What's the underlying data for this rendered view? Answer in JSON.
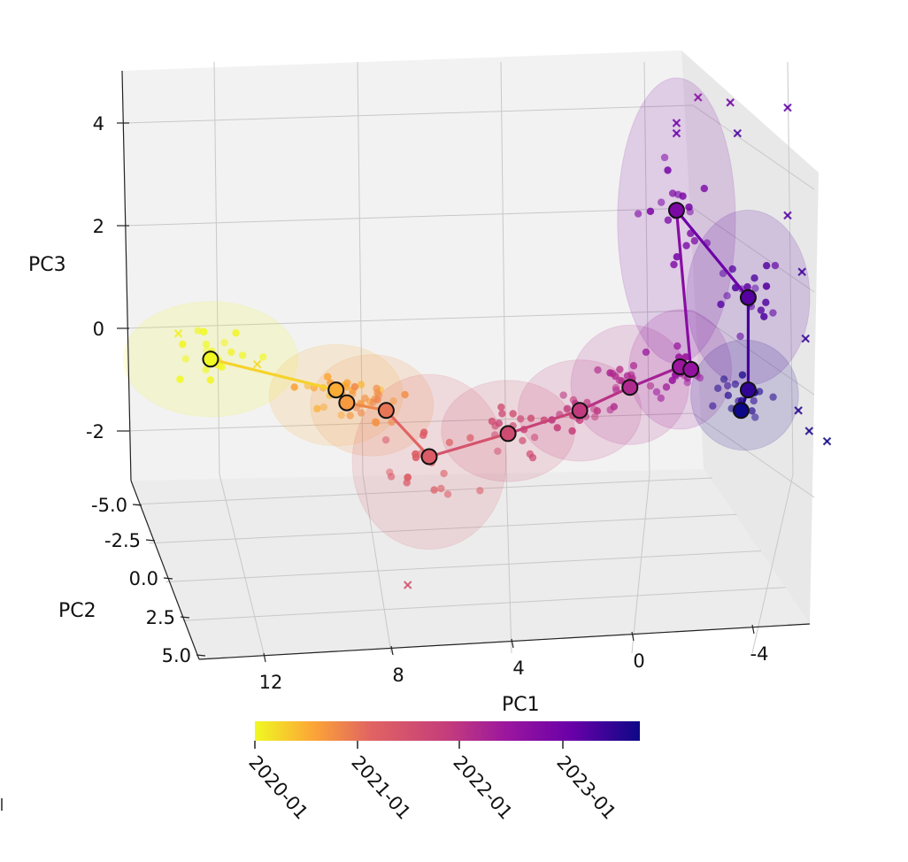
{
  "chart_data": {
    "type": "scatter",
    "projection": "3d",
    "axes": {
      "x": {
        "label": "PC1",
        "ticks": [
          12,
          8,
          4,
          0,
          -4
        ],
        "tick_labels": [
          "12",
          "8",
          "4",
          "0",
          "-4"
        ],
        "range": [
          14,
          -6
        ]
      },
      "y": {
        "label": "PC2",
        "ticks": [
          -5.0,
          -2.5,
          0.0,
          2.5,
          5.0
        ],
        "tick_labels": [
          "-5.0",
          "-2.5",
          "0.0",
          "2.5",
          "5.0"
        ],
        "range": [
          -5,
          5
        ]
      },
      "z": {
        "label": "PC3",
        "ticks": [
          -2,
          0,
          2,
          4
        ],
        "tick_labels": [
          "-2",
          "0",
          "2",
          "4"
        ],
        "range": [
          -3.3,
          5
        ]
      }
    },
    "colorbar": {
      "colormap": "plasma_r",
      "ticks": [
        "2020-01",
        "2021-01",
        "2022-01",
        "2023-01"
      ],
      "start_color": "#f0f921",
      "end_color": "#0d0887"
    },
    "trajectory": [
      {
        "pc1": 12.1,
        "pc2": 0,
        "pc3": -0.6,
        "t": 0.0
      },
      {
        "pc1": 8.6,
        "pc2": 0,
        "pc3": -1.2,
        "t": 0.14
      },
      {
        "pc1": 8.3,
        "pc2": 0,
        "pc3": -1.45,
        "t": 0.18
      },
      {
        "pc1": 7.2,
        "pc2": 0,
        "pc3": -1.6,
        "t": 0.26
      },
      {
        "pc1": 6.0,
        "pc2": 0,
        "pc3": -2.5,
        "t": 0.34
      },
      {
        "pc1": 3.8,
        "pc2": 0,
        "pc3": -2.05,
        "t": 0.43
      },
      {
        "pc1": 1.8,
        "pc2": 0,
        "pc3": -1.6,
        "t": 0.51
      },
      {
        "pc1": 0.4,
        "pc2": 0,
        "pc3": -1.15,
        "t": 0.58
      },
      {
        "pc1": -1.0,
        "pc2": 0,
        "pc3": -0.75,
        "t": 0.65
      },
      {
        "pc1": -1.3,
        "pc2": 0,
        "pc3": -0.8,
        "t": 0.68
      },
      {
        "pc1": -0.9,
        "pc2": 0,
        "pc3": 2.3,
        "t": 0.76
      },
      {
        "pc1": -2.9,
        "pc2": 0,
        "pc3": 0.6,
        "t": 0.86
      },
      {
        "pc1": -2.9,
        "pc2": 0,
        "pc3": -1.2,
        "t": 0.93
      },
      {
        "pc1": -2.7,
        "pc2": 0,
        "pc3": -1.6,
        "t": 1.0
      }
    ],
    "clusters": [
      {
        "pc1": 12.1,
        "pc3": -0.6,
        "sx": 3.4,
        "sz": 1.25,
        "t": 0.0
      },
      {
        "pc1": 8.6,
        "pc3": -1.3,
        "sx": 2.6,
        "sz": 1.1,
        "t": 0.14
      },
      {
        "pc1": 7.6,
        "pc3": -1.5,
        "sx": 2.4,
        "sz": 1.1,
        "t": 0.2
      },
      {
        "pc1": 6.0,
        "pc3": -2.6,
        "sx": 3.0,
        "sz": 1.9,
        "t": 0.34
      },
      {
        "pc1": 3.8,
        "pc3": -2.0,
        "sx": 2.6,
        "sz": 1.1,
        "t": 0.43
      },
      {
        "pc1": 1.8,
        "pc3": -1.6,
        "sx": 2.4,
        "sz": 1.1,
        "t": 0.51
      },
      {
        "pc1": 0.4,
        "pc3": -1.1,
        "sx": 2.3,
        "sz": 1.3,
        "t": 0.58
      },
      {
        "pc1": -1.0,
        "pc3": -0.8,
        "sx": 2.0,
        "sz": 1.3,
        "t": 0.65
      },
      {
        "pc1": -0.9,
        "pc3": 2.1,
        "sx": 2.3,
        "sz": 3.1,
        "t": 0.76
      },
      {
        "pc1": -2.9,
        "pc3": 0.6,
        "sx": 2.4,
        "sz": 1.9,
        "t": 0.86
      },
      {
        "pc1": -2.8,
        "pc3": -1.3,
        "sx": 2.1,
        "sz": 1.2,
        "t": 0.96
      }
    ],
    "outliers": [
      {
        "pc1": 13.0,
        "pc3": -0.1,
        "t": 0.02
      },
      {
        "pc1": 10.8,
        "pc3": -0.7,
        "t": 0.06
      },
      {
        "pc1": 6.6,
        "pc3": -5.0,
        "t": 0.4
      },
      {
        "pc1": -2.4,
        "pc3": 4.4,
        "t": 0.78
      },
      {
        "pc1": -1.5,
        "pc3": 4.5,
        "t": 0.72
      },
      {
        "pc1": -4.0,
        "pc3": 4.3,
        "t": 0.84
      },
      {
        "pc1": -0.9,
        "pc3": 4.0,
        "t": 0.8
      },
      {
        "pc1": -0.9,
        "pc3": 3.8,
        "t": 0.82
      },
      {
        "pc1": -2.6,
        "pc3": 3.8,
        "t": 0.88
      },
      {
        "pc1": -4.0,
        "pc3": 2.2,
        "t": 0.86
      },
      {
        "pc1": -4.4,
        "pc3": 1.1,
        "t": 0.9
      },
      {
        "pc1": -4.5,
        "pc3": -0.2,
        "t": 0.92
      },
      {
        "pc1": -4.3,
        "pc3": -1.6,
        "t": 0.95
      },
      {
        "pc1": -4.6,
        "pc3": -2.0,
        "t": 0.97
      },
      {
        "pc1": -5.1,
        "pc3": -2.2,
        "t": 0.99
      }
    ]
  }
}
